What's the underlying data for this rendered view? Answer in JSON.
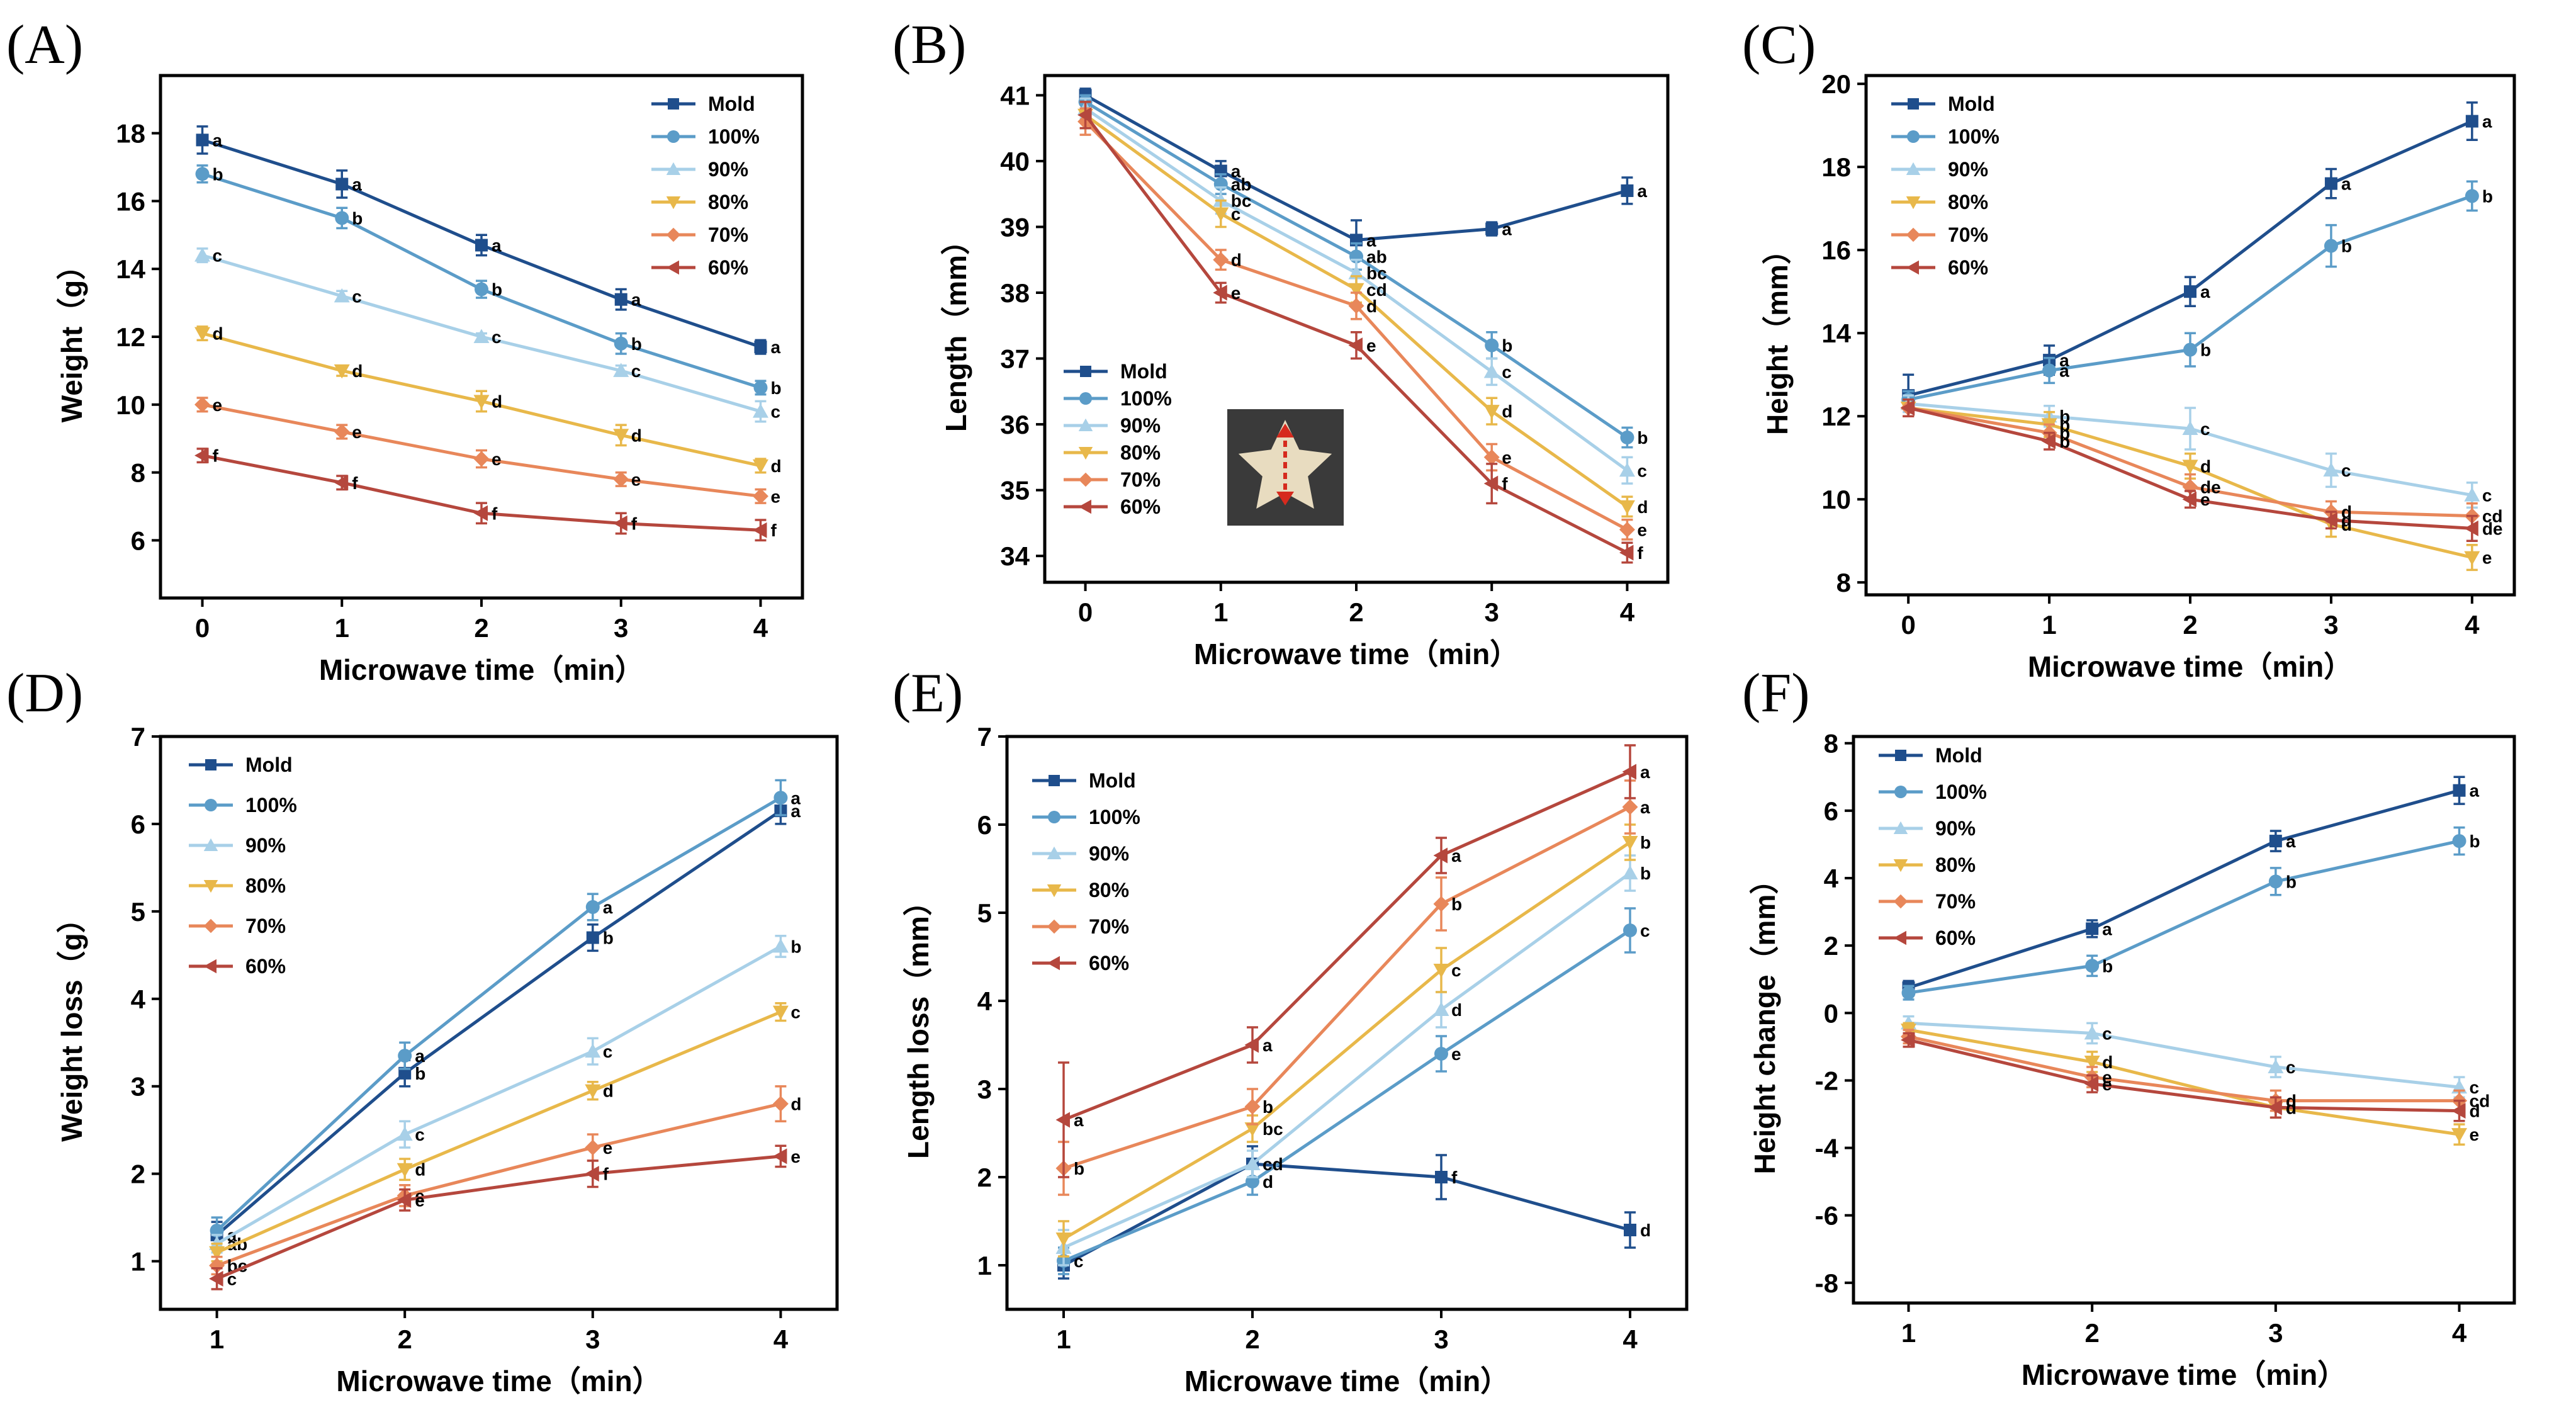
{
  "series_colors": {
    "Mold": "#1f4e8c",
    "100%": "#5b9cc8",
    "90%": "#a8d0e8",
    "80%": "#e8b84a",
    "70%": "#e8875a",
    "60%": "#b5473d"
  },
  "chart_data": [
    {
      "type": "line",
      "panel_label": "(A)",
      "xlabel": "Microwave time（min）",
      "ylabel": "Weight（g）",
      "x": [
        0,
        1,
        2,
        3,
        4
      ],
      "xlim": [
        -0.3,
        4.3
      ],
      "ylim": [
        4.3,
        19.7
      ],
      "yticks": [
        6,
        8,
        10,
        12,
        14,
        16,
        18
      ],
      "legend_position": "top-right",
      "series": [
        {
          "name": "Mold",
          "values": [
            17.8,
            16.5,
            14.7,
            13.1,
            11.7
          ],
          "err": [
            0.4,
            0.4,
            0.3,
            0.3,
            0.2
          ],
          "labels": [
            "a",
            "a",
            "a",
            "a",
            "a"
          ]
        },
        {
          "name": "100%",
          "values": [
            16.8,
            15.5,
            13.4,
            11.8,
            10.5
          ],
          "err": [
            0.25,
            0.3,
            0.25,
            0.3,
            0.2
          ],
          "labels": [
            "b",
            "b",
            "b",
            "b",
            "b"
          ]
        },
        {
          "name": "90%",
          "values": [
            14.4,
            13.2,
            12.0,
            11.0,
            9.8
          ],
          "err": [
            0.2,
            0.15,
            0.1,
            0.15,
            0.3
          ],
          "labels": [
            "c",
            "c",
            "c",
            "c",
            "c"
          ]
        },
        {
          "name": "80%",
          "values": [
            12.1,
            11.0,
            10.1,
            9.1,
            8.2
          ],
          "err": [
            0.2,
            0.15,
            0.3,
            0.3,
            0.2
          ],
          "labels": [
            "d",
            "d",
            "d",
            "d",
            "d"
          ]
        },
        {
          "name": "70%",
          "values": [
            10.0,
            9.2,
            8.4,
            7.8,
            7.3
          ],
          "err": [
            0.2,
            0.2,
            0.25,
            0.2,
            0.2
          ],
          "labels": [
            "e",
            "e",
            "e",
            "e",
            "e"
          ]
        },
        {
          "name": "60%",
          "values": [
            8.5,
            7.7,
            6.8,
            6.5,
            6.3
          ],
          "err": [
            0.2,
            0.2,
            0.3,
            0.3,
            0.3
          ],
          "labels": [
            "f",
            "f",
            "f",
            "f",
            "f"
          ]
        }
      ]
    },
    {
      "type": "line",
      "panel_label": "(B)",
      "xlabel": "Microwave time（min）",
      "ylabel": "Length（mm）",
      "x": [
        0,
        1,
        2,
        3,
        4
      ],
      "xlim": [
        -0.3,
        4.3
      ],
      "ylim": [
        33.6,
        41.3
      ],
      "yticks": [
        34,
        35,
        36,
        37,
        38,
        39,
        40,
        41
      ],
      "legend_position": "center-left",
      "series": [
        {
          "name": "Mold",
          "values": [
            41.0,
            39.85,
            38.8,
            38.97,
            39.55
          ],
          "err": [
            0.1,
            0.15,
            0.3,
            0.1,
            0.2
          ],
          "labels": [
            "",
            "a",
            "a",
            "a",
            "a"
          ]
        },
        {
          "name": "100%",
          "values": [
            40.9,
            39.65,
            38.55,
            37.2,
            35.8
          ],
          "err": [
            0.1,
            0.15,
            0.2,
            0.2,
            0.15
          ],
          "labels": [
            "",
            "ab",
            "ab",
            "b",
            "b"
          ]
        },
        {
          "name": "90%",
          "values": [
            40.8,
            39.4,
            38.3,
            36.8,
            35.3
          ],
          "err": [
            0.15,
            0.2,
            0.2,
            0.2,
            0.2
          ],
          "labels": [
            "",
            "bc",
            "bc",
            "c",
            "c"
          ]
        },
        {
          "name": "80%",
          "values": [
            40.7,
            39.2,
            38.05,
            36.2,
            34.75
          ],
          "err": [
            0.2,
            0.2,
            0.2,
            0.2,
            0.15
          ],
          "labels": [
            "",
            "c",
            "cd",
            "d",
            "d"
          ]
        },
        {
          "name": "70%",
          "values": [
            40.6,
            38.5,
            37.8,
            35.5,
            34.4
          ],
          "err": [
            0.2,
            0.15,
            0.2,
            0.2,
            0.15
          ],
          "labels": [
            "",
            "d",
            "d",
            "e",
            "e"
          ]
        },
        {
          "name": "60%",
          "values": [
            40.7,
            38.0,
            37.2,
            35.1,
            34.05
          ],
          "err": [
            0.2,
            0.15,
            0.2,
            0.3,
            0.15
          ],
          "labels": [
            "",
            "e",
            "e",
            "f",
            "f"
          ]
        }
      ]
    },
    {
      "type": "line",
      "panel_label": "(C)",
      "xlabel": "Microwave time（min）",
      "ylabel": "Height（mm）",
      "x": [
        0,
        1,
        2,
        3,
        4
      ],
      "xlim": [
        -0.3,
        4.3
      ],
      "ylim": [
        7.7,
        20.2
      ],
      "yticks": [
        8,
        10,
        12,
        14,
        16,
        18,
        20
      ],
      "legend_position": "top-left",
      "series": [
        {
          "name": "Mold",
          "values": [
            12.5,
            13.35,
            15.0,
            17.6,
            19.1
          ],
          "err": [
            0.5,
            0.35,
            0.35,
            0.35,
            0.45
          ],
          "labels": [
            "",
            "a",
            "a",
            "a",
            "a"
          ]
        },
        {
          "name": "100%",
          "values": [
            12.4,
            13.1,
            13.6,
            16.1,
            17.3
          ],
          "err": [
            0.2,
            0.3,
            0.4,
            0.5,
            0.35
          ],
          "labels": [
            "",
            "a",
            "b",
            "b",
            "b"
          ]
        },
        {
          "name": "90%",
          "values": [
            12.3,
            12.0,
            11.7,
            10.7,
            10.1
          ],
          "err": [
            0.2,
            0.25,
            0.5,
            0.4,
            0.3
          ],
          "labels": [
            "",
            "b",
            "c",
            "c",
            "c"
          ]
        },
        {
          "name": "80%",
          "values": [
            12.2,
            11.8,
            10.8,
            9.4,
            8.6
          ],
          "err": [
            0.2,
            0.3,
            0.3,
            0.3,
            0.3
          ],
          "labels": [
            "",
            "b",
            "d",
            "d",
            "e"
          ]
        },
        {
          "name": "70%",
          "values": [
            12.2,
            11.6,
            10.3,
            9.7,
            9.6
          ],
          "err": [
            0.2,
            0.2,
            0.3,
            0.25,
            0.3
          ],
          "labels": [
            "",
            "b",
            "de",
            "d",
            "cd"
          ]
        },
        {
          "name": "60%",
          "values": [
            12.2,
            11.4,
            10.0,
            9.5,
            9.3
          ],
          "err": [
            0.2,
            0.2,
            0.2,
            0.2,
            0.3
          ],
          "labels": [
            "",
            "b",
            "e",
            "d",
            "de"
          ]
        }
      ]
    },
    {
      "type": "line",
      "panel_label": "(D)",
      "xlabel": "Microwave time（min）",
      "ylabel": "Weight loss（g）",
      "x": [
        1,
        2,
        3,
        4
      ],
      "xlim": [
        0.7,
        4.3
      ],
      "ylim": [
        0.45,
        7.0
      ],
      "yticks": [
        1,
        2,
        3,
        4,
        5,
        6,
        7
      ],
      "legend_position": "top-left",
      "series": [
        {
          "name": "Mold",
          "values": [
            1.3,
            3.15,
            4.7,
            6.15
          ],
          "err": [
            0.15,
            0.15,
            0.15,
            0.15
          ],
          "labels": [
            "a",
            "b",
            "b",
            "a"
          ]
        },
        {
          "name": "100%",
          "values": [
            1.35,
            3.35,
            5.05,
            6.3
          ],
          "err": [
            0.15,
            0.15,
            0.15,
            0.2
          ],
          "labels": [
            "",
            "a",
            "a",
            "a"
          ]
        },
        {
          "name": "90%",
          "values": [
            1.2,
            2.45,
            3.4,
            4.6
          ],
          "err": [
            0.1,
            0.15,
            0.15,
            0.12
          ],
          "labels": [
            "ab",
            "c",
            "c",
            "b"
          ]
        },
        {
          "name": "80%",
          "values": [
            1.1,
            2.05,
            2.95,
            3.85
          ],
          "err": [
            0.1,
            0.12,
            0.1,
            0.1
          ],
          "labels": [
            "",
            "d",
            "d",
            "c"
          ]
        },
        {
          "name": "70%",
          "values": [
            0.95,
            1.75,
            2.3,
            2.8
          ],
          "err": [
            0.1,
            0.12,
            0.15,
            0.2
          ],
          "labels": [
            "bc",
            "e",
            "e",
            "d"
          ]
        },
        {
          "name": "60%",
          "values": [
            0.8,
            1.7,
            2.0,
            2.2
          ],
          "err": [
            0.12,
            0.12,
            0.15,
            0.12
          ],
          "labels": [
            "c",
            "e",
            "f",
            "e"
          ]
        }
      ]
    },
    {
      "type": "line",
      "panel_label": "(E)",
      "xlabel": "Microwave time（min）",
      "ylabel": "Length loss（mm）",
      "x": [
        1,
        2,
        3,
        4
      ],
      "xlim": [
        0.7,
        4.3
      ],
      "ylim": [
        0.5,
        7.0
      ],
      "yticks": [
        1,
        2,
        3,
        4,
        5,
        6,
        7
      ],
      "legend_position": "top-left",
      "series": [
        {
          "name": "Mold",
          "values": [
            1.0,
            2.15,
            2.0,
            1.4
          ],
          "err": [
            0.15,
            0.2,
            0.25,
            0.2
          ],
          "labels": [
            "",
            "",
            "f",
            "d"
          ]
        },
        {
          "name": "100%",
          "values": [
            1.05,
            1.95,
            3.4,
            4.8
          ],
          "err": [
            0.15,
            0.15,
            0.2,
            0.25
          ],
          "labels": [
            "c",
            "d",
            "e",
            "c"
          ]
        },
        {
          "name": "90%",
          "values": [
            1.2,
            2.15,
            3.9,
            5.45
          ],
          "err": [
            0.2,
            0.15,
            0.2,
            0.2
          ],
          "labels": [
            "",
            "cd",
            "d",
            "b"
          ]
        },
        {
          "name": "80%",
          "values": [
            1.3,
            2.55,
            4.35,
            5.8
          ],
          "err": [
            0.2,
            0.15,
            0.25,
            0.2
          ],
          "labels": [
            "",
            "bc",
            "c",
            "b"
          ]
        },
        {
          "name": "70%",
          "values": [
            2.1,
            2.8,
            5.1,
            6.2
          ],
          "err": [
            0.3,
            0.2,
            0.3,
            0.3
          ],
          "labels": [
            "b",
            "b",
            "b",
            "a"
          ]
        },
        {
          "name": "60%",
          "values": [
            2.65,
            3.5,
            5.65,
            6.6
          ],
          "err": [
            0.65,
            0.2,
            0.2,
            0.3
          ],
          "labels": [
            "a",
            "a",
            "a",
            "a"
          ]
        }
      ]
    },
    {
      "type": "line",
      "panel_label": "(F)",
      "xlabel": "Microwave time（min）",
      "ylabel": "Height change（mm）",
      "x": [
        1,
        2,
        3,
        4
      ],
      "xlim": [
        0.7,
        4.3
      ],
      "ylim": [
        -8.6,
        8.2
      ],
      "yticks": [
        -8,
        -6,
        -4,
        -2,
        0,
        2,
        4,
        6,
        8
      ],
      "legend_position": "top-left",
      "series": [
        {
          "name": "Mold",
          "values": [
            0.75,
            2.5,
            5.1,
            6.6
          ],
          "err": [
            0.2,
            0.25,
            0.3,
            0.4
          ],
          "labels": [
            "",
            "a",
            "a",
            "a"
          ]
        },
        {
          "name": "100%",
          "values": [
            0.6,
            1.4,
            3.9,
            5.1
          ],
          "err": [
            0.2,
            0.3,
            0.4,
            0.4
          ],
          "labels": [
            "",
            "b",
            "b",
            "b"
          ]
        },
        {
          "name": "90%",
          "values": [
            -0.3,
            -0.6,
            -1.6,
            -2.2
          ],
          "err": [
            0.2,
            0.3,
            0.3,
            0.3
          ],
          "labels": [
            "",
            "c",
            "c",
            "c"
          ]
        },
        {
          "name": "80%",
          "values": [
            -0.5,
            -1.45,
            -2.8,
            -3.6
          ],
          "err": [
            0.2,
            0.3,
            0.3,
            0.3
          ],
          "labels": [
            "",
            "d",
            "d",
            "e"
          ]
        },
        {
          "name": "70%",
          "values": [
            -0.7,
            -1.9,
            -2.6,
            -2.6
          ],
          "err": [
            0.2,
            0.3,
            0.3,
            0.3
          ],
          "labels": [
            "",
            "e",
            "d",
            "cd"
          ]
        },
        {
          "name": "60%",
          "values": [
            -0.8,
            -2.1,
            -2.8,
            -2.9
          ],
          "err": [
            0.2,
            0.25,
            0.3,
            0.3
          ],
          "labels": [
            "",
            "e",
            "d",
            "d"
          ]
        }
      ]
    }
  ]
}
